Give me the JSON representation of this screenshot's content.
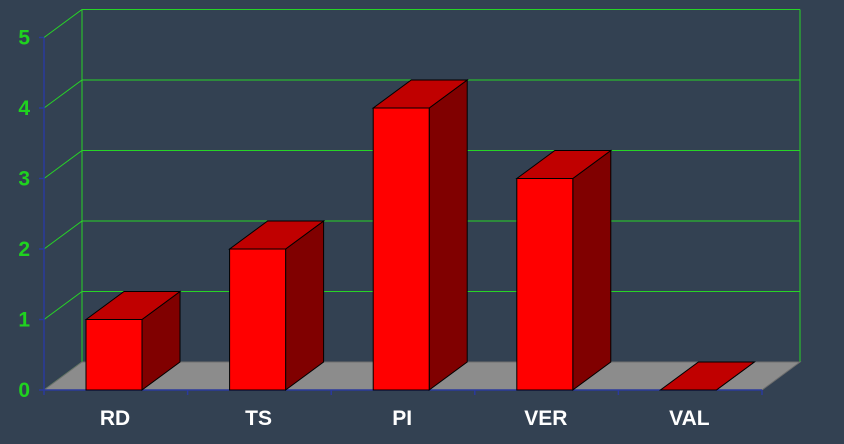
{
  "chart_data": {
    "type": "bar",
    "categories": [
      "RD",
      "TS",
      "PI",
      "VER",
      "VAL"
    ],
    "values": [
      1,
      2,
      4,
      3,
      0
    ],
    "ylim": [
      0,
      5
    ],
    "yticks": [
      "0",
      "1",
      "2",
      "3",
      "4",
      "5"
    ],
    "grid": true,
    "three_d": true,
    "colors": {
      "background": "#334152",
      "grid": "#27d427",
      "floor": "#8c8c8c",
      "bar_front": "#ff0000",
      "bar_top": "#c00000",
      "bar_side": "#800000",
      "axis": "#2b3a9c",
      "tick_label": "#1fd21f",
      "category_label": "#ffffff"
    }
  }
}
